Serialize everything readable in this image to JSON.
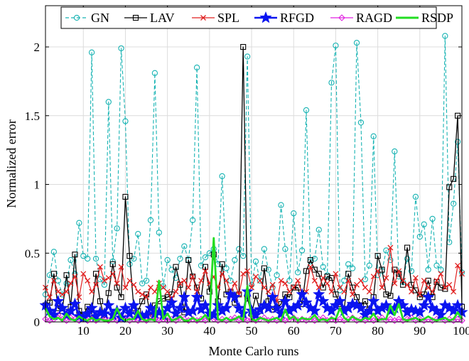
{
  "chart_data": {
    "type": "line",
    "xlabel": "Monte Carlo runs",
    "ylabel": "Normalized error",
    "xlim": [
      1,
      100
    ],
    "ylim": [
      0,
      2.3
    ],
    "xticks": [
      10,
      20,
      30,
      40,
      50,
      60,
      70,
      80,
      90,
      100
    ],
    "yticks": [
      0,
      0.5,
      1,
      1.5,
      2
    ],
    "ytick_labels": [
      "0",
      "0.5",
      "1",
      "1.5",
      "2"
    ],
    "grid": true,
    "legend": "top, horizontal",
    "x": [
      1,
      2,
      3,
      4,
      5,
      6,
      7,
      8,
      9,
      10,
      11,
      12,
      13,
      14,
      15,
      16,
      17,
      18,
      19,
      20,
      21,
      22,
      23,
      24,
      25,
      26,
      27,
      28,
      29,
      30,
      31,
      32,
      33,
      34,
      35,
      36,
      37,
      38,
      39,
      40,
      41,
      42,
      43,
      44,
      45,
      46,
      47,
      48,
      49,
      50,
      51,
      52,
      53,
      54,
      55,
      56,
      57,
      58,
      59,
      60,
      61,
      62,
      63,
      64,
      65,
      66,
      67,
      68,
      69,
      70,
      71,
      72,
      73,
      74,
      75,
      76,
      77,
      78,
      79,
      80,
      81,
      82,
      83,
      84,
      85,
      86,
      87,
      88,
      89,
      90,
      91,
      92,
      93,
      94,
      95,
      96,
      97,
      98,
      99,
      100
    ],
    "series": [
      {
        "name": "GN",
        "color": "#17b3b3",
        "marker": "circle",
        "style": "dashed",
        "values": [
          0.2,
          0.34,
          0.51,
          0.3,
          0.2,
          0.28,
          0.45,
          0.35,
          0.72,
          0.48,
          0.46,
          1.96,
          0.46,
          0.31,
          0.27,
          1.6,
          0.44,
          0.68,
          1.99,
          1.46,
          0.42,
          0.46,
          0.64,
          0.28,
          0.3,
          0.74,
          1.81,
          0.65,
          0.26,
          0.45,
          0.38,
          0.32,
          0.46,
          0.55,
          0.45,
          0.74,
          1.85,
          0.41,
          0.47,
          0.5,
          0.53,
          0.42,
          1.06,
          0.39,
          0.3,
          0.45,
          0.53,
          0.48,
          1.93,
          0.27,
          0.44,
          0.3,
          0.53,
          0.38,
          0.25,
          0.34,
          0.85,
          0.53,
          0.3,
          0.79,
          0.36,
          0.52,
          1.54,
          0.44,
          0.46,
          0.67,
          0.4,
          0.34,
          1.74,
          2.01,
          0.23,
          0.3,
          0.42,
          0.39,
          2.03,
          1.45,
          0.31,
          0.41,
          1.35,
          0.34,
          0.37,
          0.52,
          0.45,
          1.24,
          0.33,
          0.29,
          0.46,
          0.37,
          0.91,
          0.62,
          0.71,
          0.38,
          0.75,
          0.41,
          0.38,
          2.08,
          0.58,
          0.86,
          1.31,
          0.36
        ]
      },
      {
        "name": "LAV",
        "color": "#000000",
        "marker": "square",
        "style": "solid",
        "values": [
          0.12,
          0.14,
          0.35,
          0.1,
          0.08,
          0.34,
          0.11,
          0.49,
          0.08,
          0.05,
          0.11,
          0.06,
          0.35,
          0.15,
          0.03,
          0.21,
          0.42,
          0.25,
          0.18,
          0.91,
          0.48,
          0.1,
          0.08,
          0.15,
          0.2,
          0.04,
          0.12,
          0.15,
          0.17,
          0.18,
          0.2,
          0.4,
          0.27,
          0.07,
          0.45,
          0.33,
          0.25,
          0.17,
          0.4,
          0.22,
          0.49,
          0.15,
          0.42,
          0.2,
          0.22,
          0.14,
          0.2,
          2.0,
          0.17,
          0.06,
          0.19,
          0.08,
          0.39,
          0.15,
          0.09,
          0.1,
          0.13,
          0.2,
          0.18,
          0.25,
          0.25,
          0.13,
          0.37,
          0.45,
          0.38,
          0.35,
          0.25,
          0.33,
          0.32,
          0.2,
          0.13,
          0.09,
          0.35,
          0.25,
          0.18,
          0.12,
          0.15,
          0.09,
          0.18,
          0.48,
          0.38,
          0.2,
          0.19,
          0.38,
          0.35,
          0.27,
          0.54,
          0.27,
          0.23,
          0.18,
          0.2,
          0.3,
          0.18,
          0.29,
          0.25,
          0.24,
          0.98,
          1.04,
          1.5,
          0.11
        ]
      },
      {
        "name": "SPL",
        "color": "#e02020",
        "marker": "x",
        "style": "solid",
        "values": [
          0.25,
          0.18,
          0.3,
          0.22,
          0.2,
          0.22,
          0.28,
          0.33,
          0.18,
          0.35,
          0.3,
          0.22,
          0.27,
          0.4,
          0.3,
          0.32,
          0.35,
          0.28,
          0.4,
          0.25,
          0.3,
          0.27,
          0.22,
          0.2,
          0.18,
          0.25,
          0.22,
          0.28,
          0.25,
          0.22,
          0.17,
          0.22,
          0.28,
          0.3,
          0.25,
          0.33,
          0.22,
          0.3,
          0.37,
          0.28,
          0.33,
          0.25,
          0.35,
          0.3,
          0.22,
          0.28,
          0.2,
          0.35,
          0.37,
          0.25,
          0.33,
          0.3,
          0.25,
          0.22,
          0.27,
          0.15,
          0.3,
          0.28,
          0.22,
          0.25,
          0.3,
          0.2,
          0.22,
          0.4,
          0.3,
          0.25,
          0.32,
          0.28,
          0.22,
          0.35,
          0.25,
          0.22,
          0.3,
          0.2,
          0.27,
          0.3,
          0.25,
          0.22,
          0.33,
          0.37,
          0.25,
          0.32,
          0.54,
          0.28,
          0.37,
          0.3,
          0.27,
          0.22,
          0.32,
          0.2,
          0.3,
          0.25,
          0.22,
          0.3,
          0.35,
          0.25,
          0.27,
          0.22,
          0.41,
          0.35
        ]
      },
      {
        "name": "RFGD",
        "color": "#0a14f0",
        "marker": "star",
        "style": "solid",
        "values": [
          0.12,
          0.08,
          0.05,
          0.15,
          0.1,
          0.05,
          0.08,
          0.13,
          0.04,
          0.03,
          0.06,
          0.1,
          0.04,
          0.07,
          0.06,
          0.12,
          0.05,
          0.08,
          0.03,
          0.1,
          0.06,
          0.12,
          0.05,
          0.04,
          0.05,
          0.1,
          0.06,
          0.07,
          0.05,
          0.1,
          0.14,
          0.06,
          0.1,
          0.18,
          0.07,
          0.08,
          0.18,
          0.09,
          0.12,
          0.06,
          0.05,
          0.12,
          0.08,
          0.1,
          0.2,
          0.18,
          0.1,
          0.06,
          0.22,
          0.08,
          0.05,
          0.09,
          0.12,
          0.1,
          0.18,
          0.1,
          0.06,
          0.15,
          0.08,
          0.1,
          0.12,
          0.2,
          0.14,
          0.1,
          0.08,
          0.2,
          0.15,
          0.1,
          0.08,
          0.12,
          0.15,
          0.08,
          0.1,
          0.13,
          0.12,
          0.1,
          0.05,
          0.08,
          0.15,
          0.08,
          0.1,
          0.12,
          0.08,
          0.1,
          0.15,
          0.12,
          0.07,
          0.09,
          0.08,
          0.07,
          0.12,
          0.18,
          0.1,
          0.08,
          0.05,
          0.12,
          0.1,
          0.08,
          0.12,
          0.07
        ]
      },
      {
        "name": "RAGD",
        "color": "#e020e0",
        "marker": "diamond",
        "style": "solid",
        "values": [
          0.02,
          0.01,
          0.02,
          0.05,
          0.02,
          0.01,
          0.03,
          0.02,
          0.01,
          0.02,
          0.01,
          0.02,
          0.01,
          0.03,
          0.02,
          0.01,
          0.02,
          0.01,
          0.02,
          0.03,
          0.01,
          0.02,
          0.01,
          0.02,
          0.01,
          0.03,
          0.02,
          0.01,
          0.02,
          0.01,
          0.02,
          0.01,
          0.03,
          0.02,
          0.01,
          0.02,
          0.01,
          0.02,
          0.01,
          0.03,
          0.02,
          0.01,
          0.02,
          0.01,
          0.02,
          0.03,
          0.01,
          0.02,
          0.01,
          0.02,
          0.01,
          0.02,
          0.03,
          0.01,
          0.02,
          0.01,
          0.02,
          0.01,
          0.02,
          0.03,
          0.01,
          0.02,
          0.01,
          0.02,
          0.01,
          0.02,
          0.03,
          0.01,
          0.02,
          0.01,
          0.02,
          0.01,
          0.02,
          0.03,
          0.01,
          0.02,
          0.01,
          0.02,
          0.01,
          0.02,
          0.03,
          0.01,
          0.02,
          0.01,
          0.02,
          0.01,
          0.02,
          0.03,
          0.01,
          0.02,
          0.01,
          0.02,
          0.01,
          0.02,
          0.03,
          0.01,
          0.02,
          0.01,
          0.02,
          0.01
        ]
      },
      {
        "name": "RSDP",
        "color": "#22dd22",
        "marker": "none",
        "style": "solid",
        "values": [
          0.1,
          0.04,
          0.02,
          0.03,
          0.01,
          0.06,
          0.02,
          0.01,
          0.04,
          0.02,
          0.01,
          0.03,
          0.01,
          0.02,
          0.01,
          0.01,
          0.02,
          0.1,
          0.03,
          0.01,
          0.02,
          0.02,
          0.08,
          0.02,
          0.01,
          0.02,
          0.01,
          0.3,
          0.02,
          0.06,
          0.01,
          0.02,
          0.04,
          0.01,
          0.01,
          0.03,
          0.01,
          0.02,
          0.05,
          0.01,
          0.61,
          0.02,
          0.01,
          0.03,
          0.01,
          0.02,
          0.04,
          0.01,
          0.26,
          0.02,
          0.01,
          0.03,
          0.02,
          0.01,
          0.02,
          0.03,
          0.01,
          0.09,
          0.02,
          0.04,
          0.01,
          0.03,
          0.02,
          0.02,
          0.05,
          0.01,
          0.02,
          0.01,
          0.03,
          0.02,
          0.1,
          0.03,
          0.01,
          0.04,
          0.02,
          0.01,
          0.03,
          0.02,
          0.06,
          0.01,
          0.02,
          0.02,
          0.12,
          0.05,
          0.13,
          0.02,
          0.01,
          0.02,
          0.03,
          0.01,
          0.02,
          0.04,
          0.02,
          0.01,
          0.02,
          0.03,
          0.01,
          0.02,
          0.07,
          0.02
        ]
      }
    ]
  }
}
